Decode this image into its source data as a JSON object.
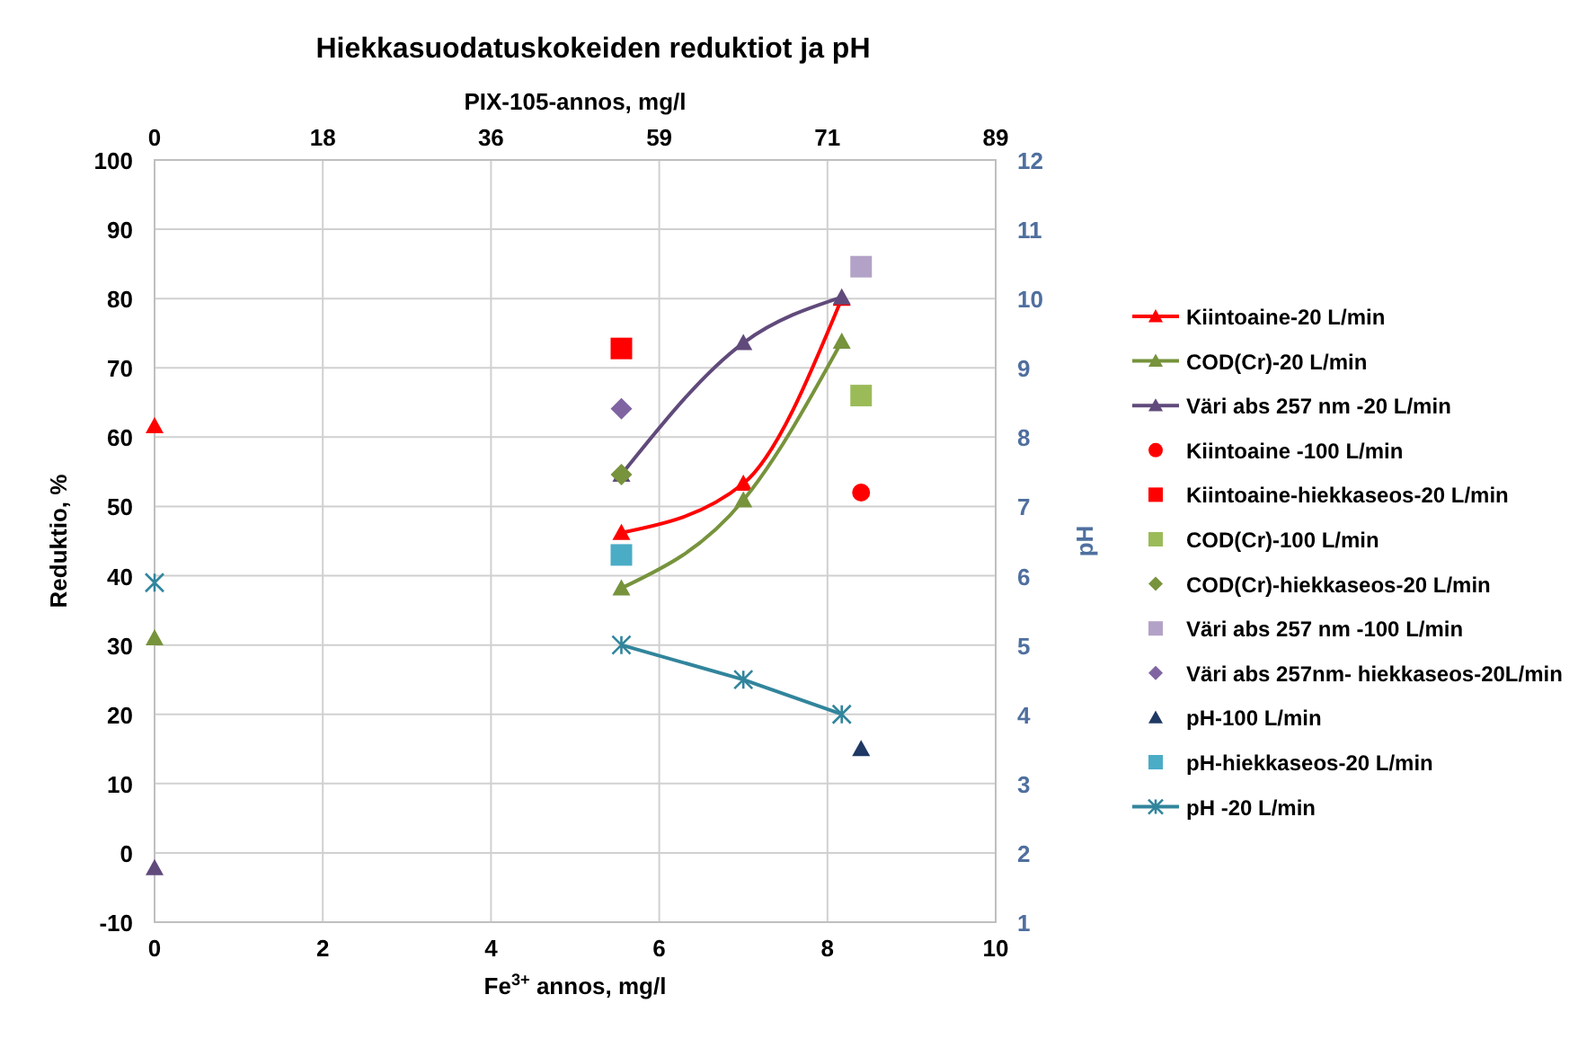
{
  "chart_data": {
    "type": "line",
    "title": "Hiekkasuodatuskokeiden reduktiot ja pH",
    "xlabel": "Fe$^{3+}$ annos, mg/l",
    "ylabel": "Reduktio, %",
    "y2label": "pH",
    "x2label": "PIX-105-annos, mg/l",
    "xlim": [
      0,
      10
    ],
    "xticks": [
      0,
      2,
      4,
      6,
      8,
      10
    ],
    "ylim": [
      -10,
      100
    ],
    "yticks": [
      -10,
      0,
      10,
      20,
      30,
      40,
      50,
      60,
      70,
      80,
      90,
      100
    ],
    "y2lim": [
      1,
      12
    ],
    "y2ticks": [
      1,
      2,
      3,
      4,
      5,
      6,
      7,
      8,
      9,
      10,
      11,
      12
    ],
    "annotations": [
      "0",
      "18",
      "36",
      "59",
      "71",
      "89"
    ],
    "grid": true,
    "legend": "right",
    "line_style": "solid",
    "series": [
      {
        "name": "Kiintoaine-20 L/min",
        "color": "#ff0000",
        "marker": "triangle",
        "x": [
          5.55,
          7.0,
          8.17
        ],
        "values": [
          46.2,
          53.3,
          80
        ]
      },
      {
        "name": "COD(Cr)-20 L/min",
        "color": "#77933c",
        "marker": "triangle",
        "x": [
          5.55,
          7.0,
          8.17
        ],
        "values": [
          38.2,
          50.9,
          73.8
        ]
      },
      {
        "name": "Väri abs 257 nm -20 L/min",
        "color": "#604a7b",
        "marker": "triangle",
        "x": [
          5.55,
          7.0,
          8.17
        ],
        "values": [
          54.6,
          73.6,
          80.2
        ]
      },
      {
        "name": "Kiintoaine -100 L/min",
        "type": "scatter",
        "color": "#ff0000",
        "marker": "circle",
        "x": [
          8.4
        ],
        "values": [
          52
        ]
      },
      {
        "name": "Kiintoaine-hiekkaseos-20 L/min",
        "type": "scatter",
        "color": "#ff0000",
        "marker": "square",
        "x": [
          5.55
        ],
        "values": [
          72.8
        ]
      },
      {
        "name": "COD(Cr)-100 L/min",
        "type": "scatter",
        "color": "#9bbb59",
        "marker": "square",
        "x": [
          8.4
        ],
        "values": [
          66
        ]
      },
      {
        "name": "COD(Cr)-hiekkaseos-20 L/min",
        "type": "scatter",
        "color": "#77933c",
        "marker": "diamond",
        "x": [
          5.55
        ],
        "values": [
          54.6
        ]
      },
      {
        "name": "Väri abs 257 nm -100 L/min",
        "type": "scatter",
        "color": "#b3a2c7",
        "marker": "square",
        "x": [
          8.4
        ],
        "values": [
          84.6
        ]
      },
      {
        "name": "Väri abs 257nm- hiekkaseos-20L/min",
        "type": "scatter",
        "color": "#8064a2",
        "marker": "diamond",
        "x": [
          5.55
        ],
        "values": [
          64.1
        ]
      },
      {
        "name": "pH-100 L/min",
        "type": "scatter",
        "color": "#1f3864",
        "marker": "triangle",
        "axis": "y2",
        "x": [
          8.4
        ],
        "values": [
          3.5
        ]
      },
      {
        "name": "pH-hiekkaseos-20 L/min",
        "type": "scatter",
        "color": "#4bacc6",
        "marker": "square",
        "axis": "y2",
        "x": [
          5.55
        ],
        "values": [
          6.3
        ]
      },
      {
        "name": "pH -20 L/min",
        "color": "#31859c",
        "marker": "cross",
        "axis": "y2",
        "x": [
          5.55,
          7.0,
          8.17
        ],
        "values": [
          5.0,
          4.5,
          4.0
        ]
      },
      {
        "type": "scatter",
        "color": "#ff0000",
        "marker": "triangle",
        "x": [
          0
        ],
        "values": [
          61.6
        ]
      },
      {
        "type": "scatter",
        "color": "#77933c",
        "marker": "triangle",
        "x": [
          0
        ],
        "values": [
          31
        ]
      },
      {
        "type": "scatter",
        "color": "#604a7b",
        "marker": "triangle",
        "x": [
          0
        ],
        "values": [
          -2.2
        ]
      },
      {
        "type": "scatter",
        "color": "#31859c",
        "marker": "cross",
        "axis": "y2",
        "x": [
          0
        ],
        "values": [
          5.9
        ]
      }
    ]
  }
}
